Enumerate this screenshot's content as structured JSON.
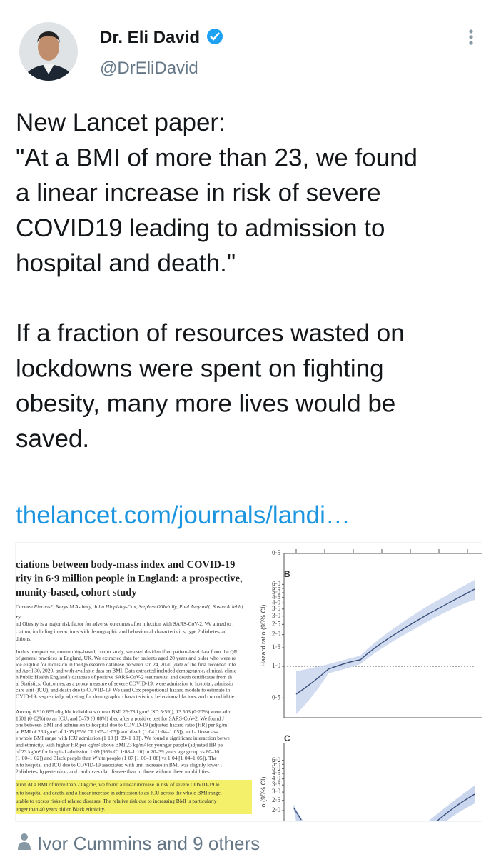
{
  "tweet": {
    "name": "Dr. Eli David",
    "handle": "@DrEliDavid",
    "paragraphs": [
      [
        "New Lancet paper:",
        "\"At a BMI of more than 23, we found",
        "a linear increase in risk of severe",
        "COVID19 leading to admission to",
        "hospital and death.\""
      ],
      [
        "If a fraction of resources wasted on",
        "lockdowns were spent on fighting",
        "obesity, many more lives would be",
        "saved."
      ]
    ],
    "link": "thelancet.com/journals/landi…",
    "footer": "Ivor Cummins and 9 others"
  },
  "image": {
    "paper": {
      "title": [
        "ciations between body-mass index and COVID-19",
        "rity in 6·9 million people in England: a prospective,",
        "munity-based, cohort study"
      ],
      "authors": "Carmen Piernas*, Nerys M Astbury, Julia Hippisley-Cox, Stephen O'Rahilly, Paul Aveyard†, Susan A Jebb†",
      "section": "ry",
      "body": [
        [
          "nd Obesity is a major risk factor for adverse outcomes after infection with SARS-CoV-2. We aimed to i",
          "ciation, including interactions with demographic and behavioural characteristics, type 2 diabetes, ar",
          "ditions."
        ],
        [
          "In this prospective, community-based, cohort study, we used de-identified patient-level data from the QR",
          "of general practices in England, UK. We extracted data for patients aged 20 years and older who were re",
          "ice eligible for inclusion in the QResearch database between Jan 24, 2020 (date of the first recorded infe",
          "nd April 30, 2020, and with available data on BMI. Data extracted included demographic, clinical, clinic",
          "h Public Health England's database of positive SARS-CoV-2 test results, and death certificates from th",
          "al Statistics. Outcomes, as a proxy measure of severe COVID-19, were admission to hospital, admissio",
          "care unit (ICU), and death due to COVID-19. We used Cox proportional hazard models to estimate th",
          "OVID-19, sequentially adjusting for demographic characteristics, behavioural factors, and comorbiditie"
        ],
        [
          "Among 6 910 695 eligible individuals (mean BMI 26·78 kg/m² [SD 5·59]), 13 503 (0·20%) were adm",
          "1601 (0·02%) to an ICU, and 5479 (0·08%) died after a positive test for SARS-CoV-2. We found J",
          "ons between BMI and admission to hospital due to COVID-19 (adjusted hazard ratio [HR] per kg/m",
          "at BMI of 23 kg/m² of 1·05 [95% CI 1·05–1·05]) and death (1·04 [1·04–1·05]), and a linear ass",
          "e whole BMI range with ICU admission (1·10 [1·09–1·10]). We found a significant interaction betwe",
          "and ethnicity, with higher HR per kg/m² above BMI 23 kg/m² for younger people (adjusted HR pe",
          "of 23 kg/m² for hospital admission 1·09 [95% CI 1·08–1·10] in 20–39 years age group vs 80–10",
          "[1·00–1·02]) and Black people than White people (1·07 [1·06–1·08] vs 1·04 [1·04–1·05]). The",
          "n to hospital and ICU due to COVID-19 associated with unit increase in BMI was slightly lower i",
          "2 diabetes, hypertension, and cardiovascular disease than in those without these morbidities."
        ]
      ],
      "highlight": [
        "ation At a BMI of more than 23 kg/m², we found a linear increase in risk of severe COVID-19 le",
        "n to hospital and death, and a linear increase in admission to an ICU across the whole BMI range,",
        "utable to excess risks of related diseases. The relative risk due to increasing BMI is particularly",
        "unger than 40 years old or Black ethnicity."
      ]
    },
    "figure": {
      "top_tick": "0·5",
      "panel_b": "B",
      "panel_c": "C",
      "y_label_b": "Hazard ratio (95% CI)",
      "y_label_c": "io (95% CI)",
      "ticks_b": [
        {
          "value": 0.5,
          "label": "0·5"
        },
        {
          "value": 1,
          "label": "1·0"
        },
        {
          "value": 1.5,
          "label": "1·5"
        },
        {
          "value": 2,
          "label": "2·0"
        },
        {
          "value": 2.5,
          "label": "2·5"
        },
        {
          "value": 3,
          "label": "3·0"
        },
        {
          "value": 3.5,
          "label": "3·5"
        },
        {
          "value": 4,
          "label": "4·0"
        },
        {
          "value": 4.5,
          "label": "4·5"
        },
        {
          "value": 5,
          "label": "5·0"
        },
        {
          "value": 5.5,
          "label": "5·5"
        },
        {
          "value": 6,
          "label": "6·0"
        }
      ],
      "ticks_c": [
        {
          "value": 2,
          "label": "2·0"
        },
        {
          "value": 2.5,
          "label": "2·5"
        },
        {
          "value": 3,
          "label": "3·0"
        },
        {
          "value": 3.5,
          "label": "3·5"
        },
        {
          "value": 4,
          "label": "4·0"
        },
        {
          "value": 4.5,
          "label": "4·5"
        },
        {
          "value": 5,
          "label": "5·0"
        },
        {
          "value": 5.5,
          "label": "5·5"
        },
        {
          "value": 6,
          "label": "6·0"
        }
      ]
    }
  }
}
